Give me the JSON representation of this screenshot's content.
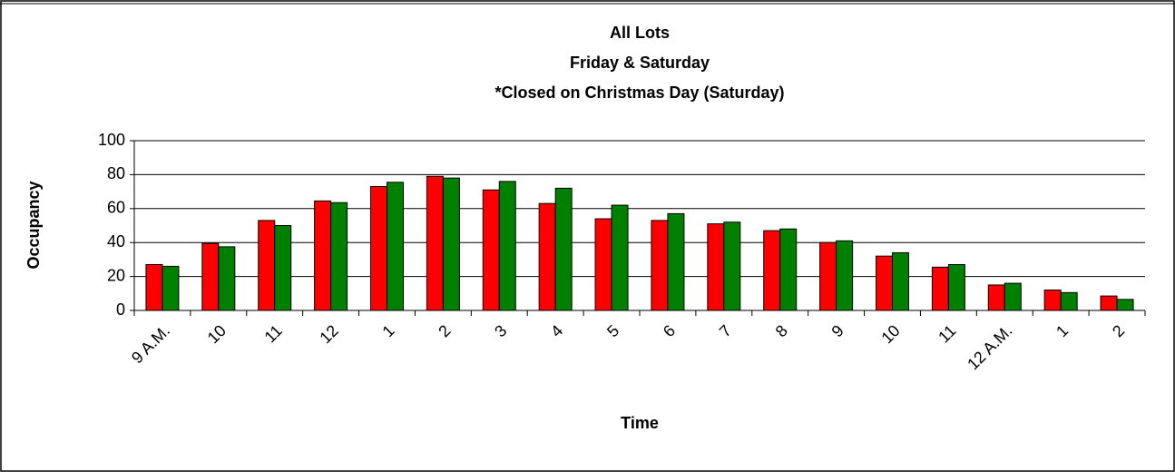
{
  "chart_data": {
    "type": "bar",
    "title": "All Lots",
    "subtitle": [
      "Friday & Saturday",
      "*Closed on Christmas Day (Saturday)"
    ],
    "x_label": "Time",
    "y_label": "Occupancy",
    "categories": [
      "9 A.M.",
      "10",
      "11",
      "12",
      "1",
      "2",
      "3",
      "4",
      "5",
      "6",
      "7",
      "8",
      "9",
      "10",
      "11",
      "12 A.M.",
      "1",
      "2"
    ],
    "series": [
      {
        "color": "#ff0000",
        "values": [
          27,
          39.5,
          53,
          64.5,
          73,
          79,
          71,
          63,
          54,
          53,
          51,
          47,
          40,
          32,
          25.5,
          15,
          12,
          8.5
        ]
      },
      {
        "color": "#008000",
        "values": [
          26,
          37.5,
          50,
          63.5,
          75.5,
          78,
          76,
          72,
          62,
          57,
          52,
          48,
          41,
          34,
          27,
          16,
          10.5,
          6.5
        ]
      }
    ],
    "ylim": [
      0,
      100
    ],
    "yticks": [
      0,
      20,
      40,
      60,
      80,
      100
    ],
    "grid": true
  }
}
